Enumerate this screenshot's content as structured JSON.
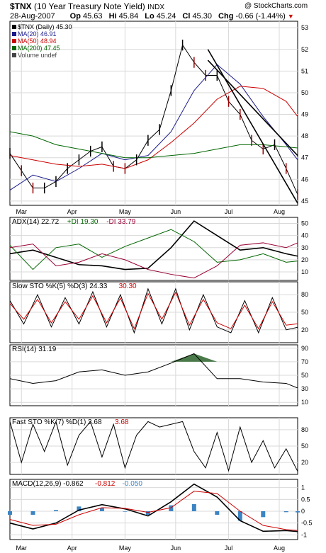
{
  "header": {
    "symbol": "$TNX",
    "name": "(10 Year Treasury Note Yield)",
    "exchange": "INDX",
    "copyright": "@ StockCharts.com",
    "date": "28-Aug-2007",
    "open_label": "Op",
    "open": "45.63",
    "high_label": "Hi",
    "high": "45.84",
    "low_label": "Lo",
    "low": "45.24",
    "close_label": "Cl",
    "close": "45.30",
    "change_label": "Chg",
    "change": "-0.66 (-1.44%)"
  },
  "colors": {
    "price": "#000000",
    "ma20": "#1a1a8c",
    "ma50": "#cc0000",
    "ma200": "#006600",
    "up": "#000000",
    "down": "#990000",
    "adx": "#000000",
    "plus_di": "#006600",
    "minus_di": "#990033",
    "stoch_k": "#000000",
    "stoch_d": "#cc0000",
    "rsi": "#000000",
    "rsi_fill": "#4a7a4a",
    "macd": "#000000",
    "signal": "#cc0000",
    "hist": "#3b84c4"
  },
  "chart_data": [
    {
      "type": "line",
      "title": "$TNX (Daily) 45.30",
      "months": [
        "Mar",
        "Apr",
        "May",
        "Jun",
        "Jul",
        "Aug"
      ],
      "y_ticks": [
        45,
        46,
        47,
        48,
        49,
        50,
        51,
        52,
        53
      ],
      "ylim": [
        44.8,
        53.3
      ],
      "legend": [
        {
          "label": "$TNX (Daily) 45.30"
        },
        {
          "label": "MA(20) 46.91"
        },
        {
          "label": "MA(50) 48.94"
        },
        {
          "label": "MA(200) 47.45"
        },
        {
          "label": "Volume undef"
        }
      ],
      "series": [
        {
          "name": "$TNX",
          "x": [
            0,
            5,
            10,
            15,
            20,
            25,
            30,
            35,
            40,
            45,
            50,
            55,
            60,
            65,
            70,
            75,
            80,
            85,
            90,
            95,
            100,
            105,
            110,
            115,
            120,
            125
          ],
          "values": [
            47.2,
            46.4,
            45.6,
            45.6,
            45.9,
            46.5,
            46.9,
            47.3,
            47.5,
            46.6,
            46.5,
            46.9,
            47.8,
            48.3,
            50.1,
            52.2,
            51.4,
            50.8,
            50.8,
            49.6,
            49.0,
            47.8,
            47.4,
            47.6,
            46.5,
            45.3
          ]
        },
        {
          "name": "MA(20)",
          "x": [
            0,
            10,
            20,
            30,
            40,
            50,
            60,
            70,
            80,
            90,
            100,
            110,
            120,
            125
          ],
          "values": [
            45.5,
            46.2,
            45.9,
            46.5,
            47.2,
            46.9,
            47.1,
            48.2,
            50.1,
            51.3,
            50.4,
            48.9,
            47.6,
            46.9
          ]
        },
        {
          "name": "MA(50)",
          "x": [
            0,
            10,
            20,
            30,
            40,
            50,
            60,
            70,
            80,
            90,
            100,
            110,
            120,
            125
          ],
          "values": [
            47.1,
            46.9,
            46.7,
            46.6,
            46.7,
            46.5,
            46.9,
            47.7,
            48.6,
            49.7,
            50.3,
            50.2,
            49.6,
            48.9
          ]
        },
        {
          "name": "MA(200)",
          "x": [
            0,
            10,
            20,
            30,
            40,
            50,
            60,
            70,
            80,
            90,
            100,
            110,
            120,
            125
          ],
          "values": [
            48.2,
            48.0,
            47.6,
            47.4,
            47.2,
            47.0,
            47.0,
            47.1,
            47.2,
            47.4,
            47.6,
            47.6,
            47.5,
            47.45
          ]
        }
      ]
    },
    {
      "type": "line",
      "title": "ADX(14) 22.72 +DI 19.30 -DI 33.79",
      "y_ticks": [
        10,
        20,
        30,
        40,
        50
      ],
      "ylim": [
        3,
        55
      ],
      "legend": [
        {
          "label": "ADX(14) 22.72"
        },
        {
          "label": "+DI 19.30"
        },
        {
          "label": "-DI 33.79"
        }
      ],
      "series": [
        {
          "name": "ADX",
          "x": [
            0,
            10,
            20,
            30,
            40,
            50,
            60,
            70,
            80,
            90,
            100,
            110,
            120,
            125
          ],
          "values": [
            25,
            28,
            22,
            16,
            15,
            12,
            13,
            30,
            52,
            40,
            28,
            30,
            25,
            23
          ]
        },
        {
          "name": "+DI",
          "x": [
            0,
            10,
            20,
            30,
            40,
            50,
            60,
            70,
            80,
            90,
            100,
            110,
            120,
            125
          ],
          "values": [
            32,
            12,
            30,
            33,
            22,
            31,
            38,
            45,
            35,
            18,
            20,
            25,
            18,
            19
          ]
        },
        {
          "name": "-DI",
          "x": [
            0,
            10,
            20,
            30,
            40,
            50,
            60,
            70,
            80,
            90,
            100,
            110,
            120,
            125
          ],
          "values": [
            30,
            33,
            15,
            18,
            25,
            20,
            12,
            8,
            5,
            15,
            32,
            34,
            30,
            34
          ]
        }
      ]
    },
    {
      "type": "line",
      "title": "Slow STO %K(5) %D(3) 24.33, 30.30",
      "y_ticks": [
        20,
        50,
        80
      ],
      "ylim": [
        -2,
        102
      ],
      "legend": [
        {
          "label": "Slow STO %K(5) %D(3) 24.33"
        },
        {
          "label": "30.30"
        }
      ],
      "series": [
        {
          "name": "%K",
          "x": [
            0,
            6,
            12,
            18,
            24,
            30,
            36,
            42,
            48,
            54,
            60,
            66,
            72,
            78,
            84,
            90,
            96,
            102,
            108,
            114,
            120,
            125
          ],
          "values": [
            70,
            30,
            80,
            25,
            75,
            30,
            85,
            25,
            80,
            15,
            90,
            30,
            90,
            20,
            80,
            25,
            15,
            70,
            15,
            75,
            20,
            24.33
          ]
        },
        {
          "name": "%D",
          "x": [
            0,
            6,
            12,
            18,
            24,
            30,
            36,
            42,
            48,
            54,
            60,
            66,
            72,
            78,
            84,
            90,
            96,
            102,
            108,
            114,
            120,
            125
          ],
          "values": [
            65,
            38,
            72,
            32,
            68,
            38,
            78,
            32,
            74,
            22,
            82,
            38,
            84,
            28,
            72,
            32,
            22,
            62,
            22,
            68,
            28,
            30.3
          ]
        }
      ]
    },
    {
      "type": "area",
      "title": "RSI(14) 31.19",
      "y_ticks": [
        10,
        30,
        50,
        70,
        90
      ],
      "ylim": [
        5,
        95
      ],
      "legend": [
        {
          "label": "RSI(14) 31.19"
        }
      ],
      "series": [
        {
          "name": "RSI",
          "x": [
            0,
            10,
            20,
            30,
            40,
            50,
            60,
            70,
            80,
            90,
            100,
            110,
            120,
            125
          ],
          "values": [
            45,
            38,
            42,
            55,
            58,
            50,
            55,
            68,
            82,
            45,
            45,
            40,
            38,
            31.19
          ]
        }
      ]
    },
    {
      "type": "line",
      "title": "Fast STO %K(7) %D(1) 3.68, 3.68",
      "y_ticks": [
        20,
        50,
        80
      ],
      "ylim": [
        -2,
        102
      ],
      "legend": [
        {
          "label": "Fast STO %K(7) %D(1) 3.68"
        },
        {
          "label": "3.68"
        }
      ],
      "series": [
        {
          "name": "%K",
          "x": [
            0,
            5,
            10,
            15,
            20,
            25,
            30,
            35,
            40,
            45,
            50,
            55,
            60,
            65,
            70,
            75,
            80,
            85,
            90,
            95,
            100,
            105,
            110,
            115,
            120,
            125
          ],
          "values": [
            95,
            20,
            90,
            40,
            95,
            15,
            70,
            95,
            30,
            90,
            10,
            70,
            95,
            85,
            90,
            95,
            40,
            10,
            75,
            5,
            85,
            20,
            60,
            10,
            45,
            3.68
          ]
        }
      ]
    },
    {
      "type": "line",
      "title": "MACD(12,26,9) -0.862, -0.812, -0.050",
      "y_ticks": [
        -1.0,
        -0.5,
        0.0,
        0.5,
        1.0
      ],
      "ylim": [
        -1.2,
        1.35
      ],
      "legend": [
        {
          "label": "MACD(12,26,9) -0.862"
        },
        {
          "label": "-0.812"
        },
        {
          "label": "-0.050"
        }
      ],
      "series": [
        {
          "name": "MACD",
          "x": [
            0,
            10,
            20,
            30,
            40,
            50,
            60,
            70,
            80,
            90,
            100,
            110,
            120,
            125
          ],
          "values": [
            -0.5,
            -0.75,
            -0.5,
            0.05,
            0.28,
            0.1,
            -0.2,
            0.4,
            1.15,
            0.6,
            -0.4,
            -0.85,
            -0.82,
            -0.862
          ]
        },
        {
          "name": "Signal",
          "x": [
            0,
            10,
            20,
            30,
            40,
            50,
            60,
            70,
            80,
            90,
            100,
            110,
            120,
            125
          ],
          "values": [
            -0.35,
            -0.6,
            -0.55,
            -0.15,
            0.15,
            0.12,
            -0.05,
            0.15,
            0.85,
            0.75,
            0.0,
            -0.6,
            -0.78,
            -0.812
          ]
        },
        {
          "name": "Histogram",
          "x": [
            0,
            10,
            20,
            30,
            40,
            50,
            60,
            70,
            80,
            90,
            100,
            110,
            120,
            125
          ],
          "values": [
            -0.15,
            -0.15,
            0.05,
            0.2,
            0.13,
            -0.02,
            -0.15,
            0.25,
            0.3,
            -0.15,
            -0.4,
            -0.25,
            -0.04,
            -0.05
          ]
        }
      ]
    }
  ]
}
